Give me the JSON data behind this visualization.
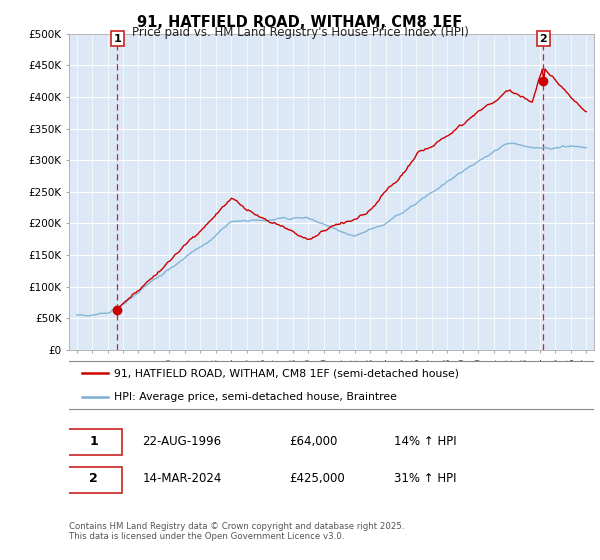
{
  "title1": "91, HATFIELD ROAD, WITHAM, CM8 1EF",
  "title2": "Price paid vs. HM Land Registry's House Price Index (HPI)",
  "legend_line1": "91, HATFIELD ROAD, WITHAM, CM8 1EF (semi-detached house)",
  "legend_line2": "HPI: Average price, semi-detached house, Braintree",
  "point1_date": "22-AUG-1996",
  "point1_price": "£64,000",
  "point1_hpi": "14% ↑ HPI",
  "point2_date": "14-MAR-2024",
  "point2_price": "£425,000",
  "point2_hpi": "31% ↑ HPI",
  "footer": "Contains HM Land Registry data © Crown copyright and database right 2025.\nThis data is licensed under the Open Government Licence v3.0.",
  "bg_color": "#dce8f5",
  "grid_color": "#ffffff",
  "line_red": "#cc0000",
  "line_blue": "#7aafd4",
  "point_color": "#cc0000",
  "dashed_red": "#cc0000",
  "box_color": "#cc2222",
  "ylim_max": 500000,
  "ylim_min": 0,
  "xlim_start": 1993.5,
  "xlim_end": 2027.5,
  "sale1_year": 1996.64,
  "sale1_price": 64000,
  "sale2_year": 2024.21,
  "sale2_price": 425000
}
